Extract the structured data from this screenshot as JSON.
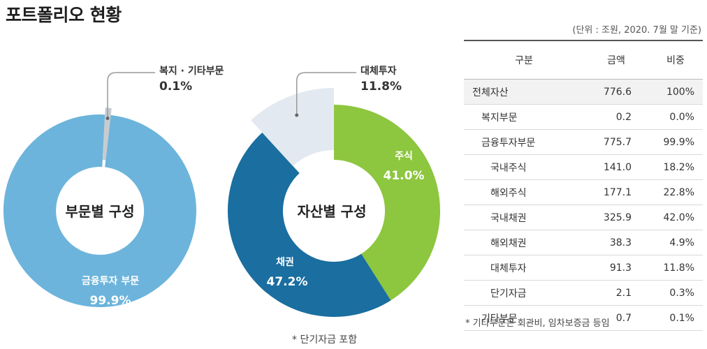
{
  "page_title": "포트폴리오 현황",
  "unit_note": "(단위 : 조원, 2020. 7월 말 기준)",
  "footnote_table": "* 기타부문은 회관비, 임차보증금 등임",
  "footnote_chart": "* 단기자금 포함",
  "colors": {
    "finance": "#6cb4db",
    "welfare": "#c7cbcf",
    "stock": "#8dc63f",
    "bond": "#1a6ea0",
    "alt": "#e3e9f0"
  },
  "chart_data": [
    {
      "type": "pie",
      "title": "부문별 구성",
      "slices": [
        {
          "label": "금융투자 부문",
          "value": 99.9,
          "value_text": "99.9%"
        },
        {
          "label": "복지 · 기타부문",
          "value": 0.1,
          "value_text": "0.1%"
        }
      ]
    },
    {
      "type": "pie",
      "title": "자산별 구성",
      "slices": [
        {
          "label": "주식",
          "value": 41.0,
          "value_text": "41.0%"
        },
        {
          "label": "채권",
          "value": 47.2,
          "value_text": "47.2%"
        },
        {
          "label": "대체투자",
          "value": 11.8,
          "value_text": "11.8%"
        }
      ]
    },
    {
      "type": "table",
      "columns": [
        "구분",
        "금액",
        "비중"
      ],
      "rows": [
        {
          "name": "전체자산",
          "amount": "776.6",
          "share": "100%"
        },
        {
          "name": "복지부문",
          "amount": "0.2",
          "share": "0.0%"
        },
        {
          "name": "금융투자부문",
          "amount": "775.7",
          "share": "99.9%"
        },
        {
          "name": "국내주식",
          "amount": "141.0",
          "share": "18.2%"
        },
        {
          "name": "해외주식",
          "amount": "177.1",
          "share": "22.8%"
        },
        {
          "name": "국내채권",
          "amount": "325.9",
          "share": "42.0%"
        },
        {
          "name": "해외채권",
          "amount": "38.3",
          "share": "4.9%"
        },
        {
          "name": "대체투자",
          "amount": "91.3",
          "share": "11.8%"
        },
        {
          "name": "단기자금",
          "amount": "2.1",
          "share": "0.3%"
        },
        {
          "name": "기타부문",
          "amount": "0.7",
          "share": "0.1%"
        }
      ]
    }
  ]
}
